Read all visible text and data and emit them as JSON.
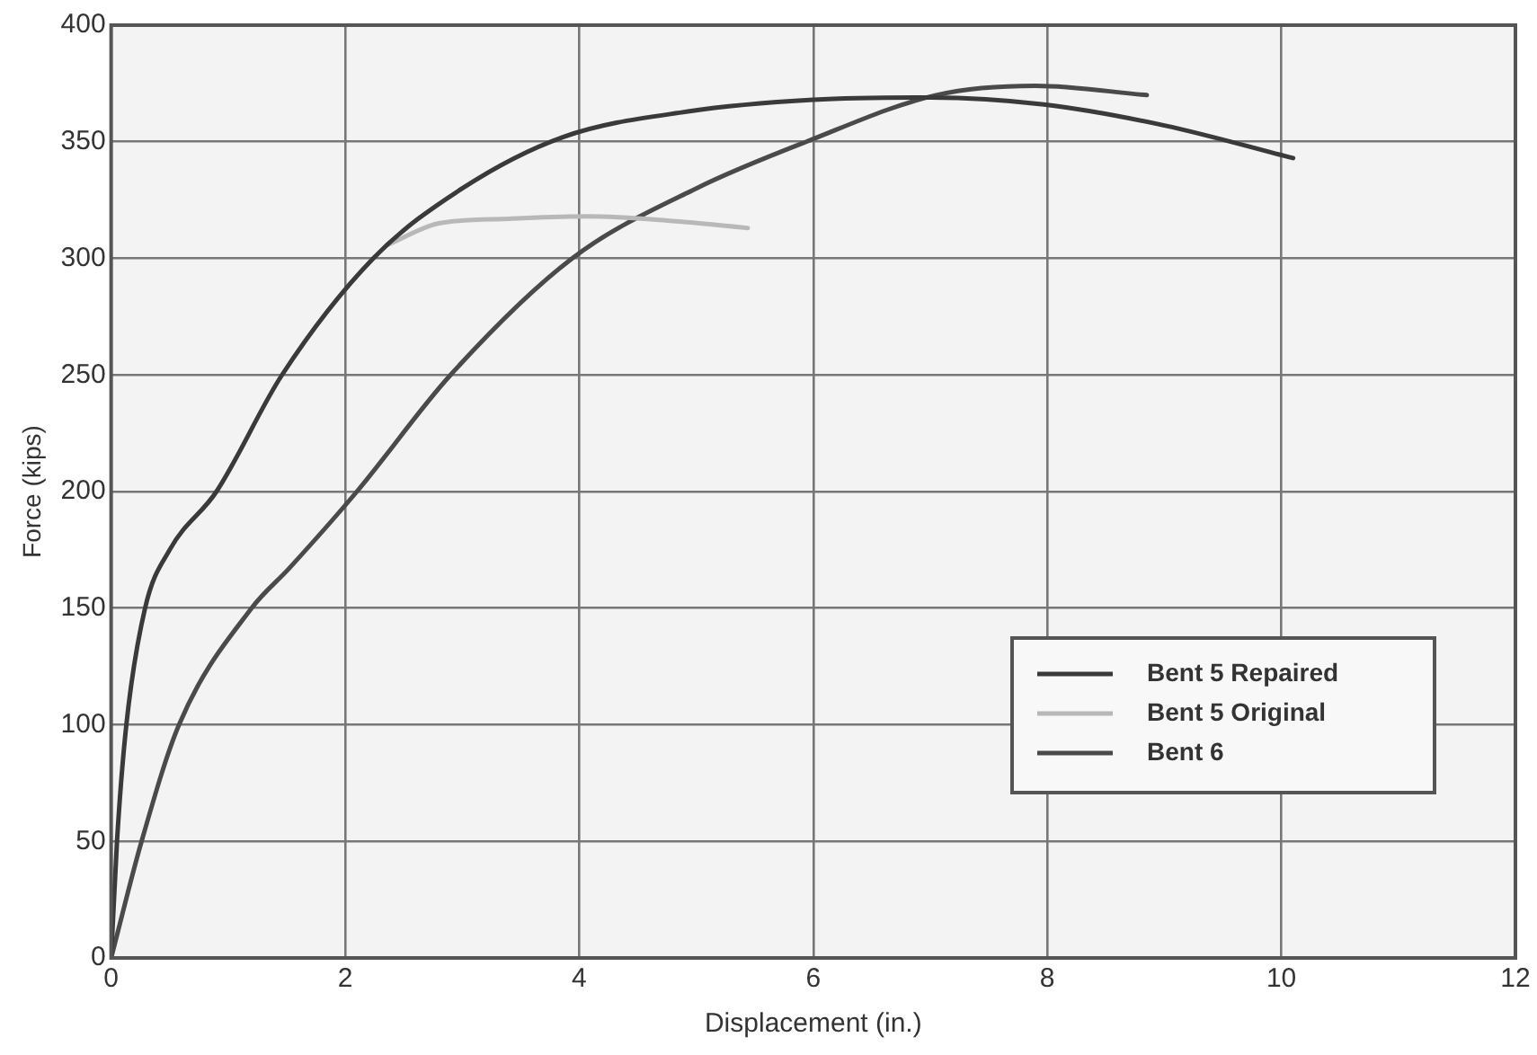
{
  "chart_data": {
    "type": "line",
    "xlabel": "Displacement (in.)",
    "ylabel": "Force (kips)",
    "xlim": [
      0,
      12
    ],
    "xticks": [
      0,
      2,
      4,
      6,
      8,
      10,
      12
    ],
    "ylim": [
      0,
      400
    ],
    "yticks": [
      0,
      50,
      100,
      150,
      200,
      250,
      300,
      350,
      400
    ],
    "grid": true,
    "legend": "bottom right",
    "marker": "none",
    "line_style": "solid",
    "series": [
      {
        "name": "Bent 5 Repaired",
        "color": "#3a3a3a",
        "x": [
          0,
          0.05,
          0.13,
          0.29,
          0.5,
          0.9,
          1.46,
          2.24,
          3.0,
          3.86,
          4.93,
          6,
          7,
          7.97,
          9,
          10.1
        ],
        "values": [
          0,
          50,
          100,
          150,
          175,
          200,
          250,
          300,
          330,
          352,
          363,
          368,
          369,
          366,
          357,
          343
        ]
      },
      {
        "name": "Bent 5 Original",
        "color": "#b8b8b8",
        "x": [
          2.37,
          2.8,
          3.4,
          4.08,
          4.8,
          5.44
        ],
        "values": [
          306,
          315,
          317,
          318,
          316,
          313
        ]
      },
      {
        "name": "Bent 6",
        "color": "#4a4a4a",
        "x": [
          0,
          0.26,
          0.58,
          1.2,
          1.52,
          2.1,
          2.9,
          3.94,
          5,
          5.94,
          7.05,
          7.9,
          8.85
        ],
        "values": [
          0,
          50,
          100,
          150,
          167,
          200,
          250,
          300,
          330,
          350,
          370,
          374,
          370
        ]
      }
    ]
  }
}
